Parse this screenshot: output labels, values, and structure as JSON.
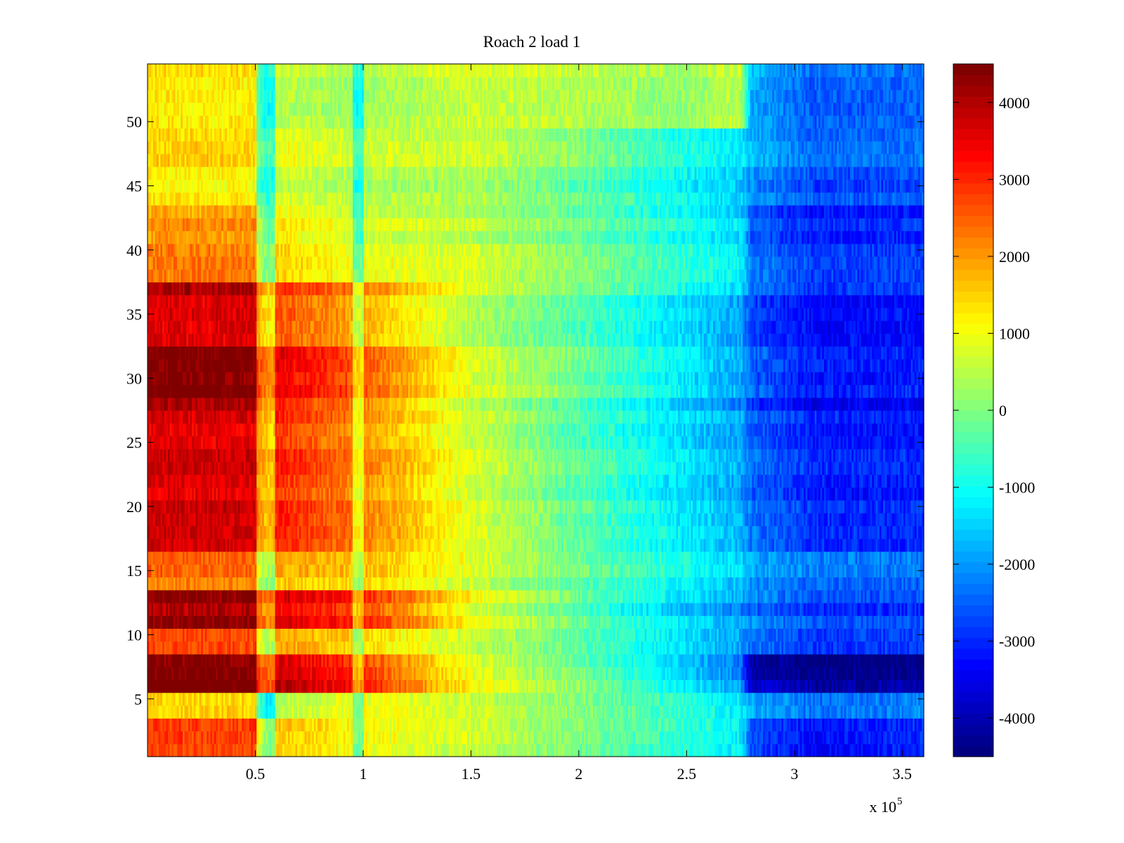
{
  "chart_data": {
    "type": "heatmap",
    "title": "Roach 2 load 1",
    "xlabel": "",
    "ylabel": "",
    "x_range": [
      0,
      360000
    ],
    "y_range": [
      0.5,
      54.5
    ],
    "x_ticks": [
      50000,
      100000,
      150000,
      200000,
      250000,
      300000,
      350000
    ],
    "x_tick_labels": [
      "0.5",
      "1",
      "1.5",
      "2",
      "2.5",
      "3",
      "3.5"
    ],
    "x_exponent_label": {
      "base": "x 10",
      "exponent": "5"
    },
    "y_ticks": [
      5,
      10,
      15,
      20,
      25,
      30,
      35,
      40,
      45,
      50
    ],
    "y_tick_labels": [
      "5",
      "10",
      "15",
      "20",
      "25",
      "30",
      "35",
      "40",
      "45",
      "50"
    ],
    "rows": 54,
    "colorbar": {
      "range": [
        -4500,
        4500
      ],
      "ticks": [
        4000,
        3000,
        2000,
        1000,
        0,
        -1000,
        -2000,
        -3000,
        -4000
      ],
      "tick_labels": [
        "4000",
        "3000",
        "2000",
        "1000",
        "0",
        "-1000",
        "-2000",
        "-3000",
        "-4000"
      ],
      "colormap": "jet",
      "levels": 64
    },
    "value_profile_x": [
      0,
      50000,
      55000,
      100000,
      150000,
      200000,
      250000,
      275000,
      280000,
      310000,
      360000
    ],
    "row_groups": [
      {
        "rows": [
          1,
          3
        ],
        "values": [
          2600,
          2600,
          1500,
          900,
          500,
          -200,
          -900,
          -1300,
          -2800,
          -3400,
          -3100
        ]
      },
      {
        "rows": [
          4,
          5
        ],
        "values": [
          1300,
          1300,
          200,
          900,
          500,
          -100,
          -900,
          -1400,
          -2000,
          -2500,
          -2300
        ]
      },
      {
        "rows": [
          6,
          8
        ],
        "values": [
          4500,
          4400,
          3900,
          2900,
          900,
          -100,
          -1500,
          -2200,
          -4000,
          -4400,
          -4300
        ]
      },
      {
        "rows": [
          9,
          10
        ],
        "values": [
          2700,
          2700,
          2000,
          1400,
          600,
          -300,
          -1400,
          -1900,
          -2300,
          -2900,
          -2800
        ]
      },
      {
        "rows": [
          11,
          13
        ],
        "values": [
          4200,
          4200,
          3600,
          2900,
          1000,
          -300,
          -1500,
          -2000,
          -2200,
          -2800,
          -2800
        ]
      },
      {
        "rows": [
          14,
          16
        ],
        "values": [
          2400,
          2400,
          1800,
          1600,
          800,
          -200,
          -1000,
          -1500,
          -1900,
          -2300,
          -2300
        ]
      },
      {
        "rows": [
          17,
          27
        ],
        "values": [
          3700,
          3700,
          3200,
          2200,
          800,
          -300,
          -1300,
          -1800,
          -2300,
          -3000,
          -3000
        ]
      },
      {
        "rows": [
          28,
          32
        ],
        "values": [
          4300,
          4300,
          3500,
          2400,
          700,
          -300,
          -1400,
          -2000,
          -2600,
          -3300,
          -3200
        ]
      },
      {
        "rows": [
          33,
          37
        ],
        "values": [
          3800,
          3800,
          2900,
          2000,
          600,
          -200,
          -1200,
          -1700,
          -2500,
          -3100,
          -3000
        ]
      },
      {
        "rows": [
          38,
          43
        ],
        "values": [
          2100,
          2100,
          1400,
          800,
          600,
          -100,
          -900,
          -1300,
          -2400,
          -3000,
          -2900
        ]
      },
      {
        "rows": [
          44,
          49
        ],
        "values": [
          1300,
          1300,
          800,
          500,
          500,
          -100,
          -1000,
          -1400,
          -1900,
          -2600,
          -2500
        ]
      },
      {
        "rows": [
          50,
          54
        ],
        "values": [
          1400,
          1400,
          700,
          400,
          800,
          600,
          300,
          700,
          -1700,
          -2400,
          -2300
        ]
      }
    ],
    "vertical_bands": [
      {
        "x": 55000,
        "width": 4500,
        "delta": -1500
      },
      {
        "x": 98000,
        "width": 2500,
        "delta": -1200
      }
    ]
  }
}
